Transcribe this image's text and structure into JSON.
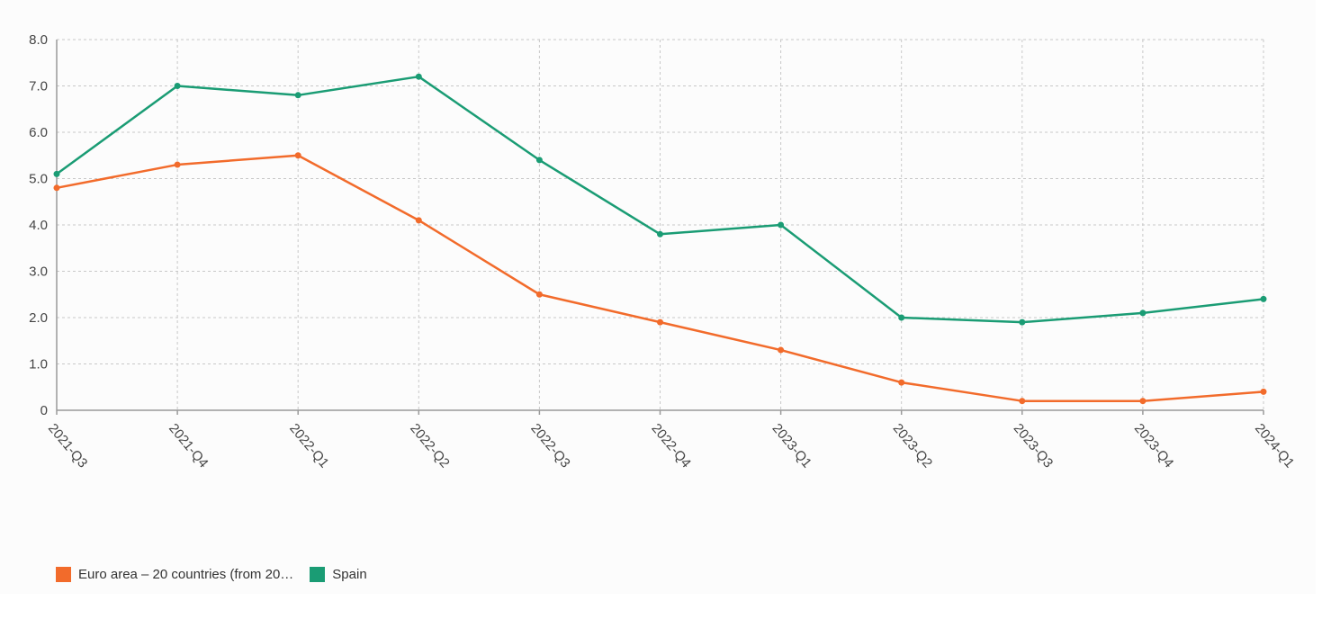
{
  "chart_data": {
    "type": "line",
    "title": "",
    "xlabel": "",
    "ylabel": "",
    "ylim": [
      0,
      8
    ],
    "y_ticks": [
      "0",
      "1.0",
      "2.0",
      "3.0",
      "4.0",
      "5.0",
      "6.0",
      "7.0",
      "8.0"
    ],
    "categories": [
      "2021-Q3",
      "2021-Q4",
      "2022-Q1",
      "2022-Q2",
      "2022-Q3",
      "2022-Q4",
      "2023-Q1",
      "2023-Q2",
      "2023-Q3",
      "2023-Q4",
      "2024-Q1"
    ],
    "grid": true,
    "legend_position": "bottom-left",
    "series": [
      {
        "name": "Euro area – 20 countries (from 20…",
        "color": "#f26b2b",
        "values": [
          4.8,
          5.3,
          5.5,
          4.1,
          2.5,
          1.9,
          1.3,
          0.6,
          0.2,
          0.2,
          0.4
        ]
      },
      {
        "name": "Spain",
        "color": "#1a9c74",
        "values": [
          5.1,
          7.0,
          6.8,
          7.2,
          5.4,
          3.8,
          4.0,
          2.0,
          1.9,
          2.1,
          2.4
        ]
      }
    ]
  }
}
